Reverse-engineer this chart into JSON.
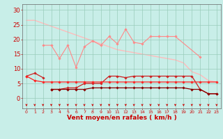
{
  "x": [
    0,
    1,
    2,
    3,
    4,
    5,
    6,
    7,
    8,
    9,
    10,
    11,
    12,
    13,
    14,
    15,
    16,
    17,
    18,
    19,
    20,
    21,
    22,
    23
  ],
  "lines": [
    {
      "y": [
        26.5,
        26.5,
        25.5,
        24.5,
        23.5,
        22.5,
        21.5,
        20.5,
        19.5,
        18.5,
        17.5,
        16.5,
        16.0,
        15.5,
        15.0,
        14.5,
        14.0,
        13.5,
        13.0,
        12.0,
        9.0,
        8.0,
        6.0,
        5.5
      ],
      "color": "#ffbbbb",
      "linewidth": 1.0,
      "marker": null,
      "markersize": 0,
      "zorder": 1
    },
    {
      "y": [
        null,
        null,
        18.0,
        18.0,
        13.5,
        18.0,
        10.5,
        17.5,
        19.5,
        18.0,
        21.0,
        18.5,
        23.5,
        19.0,
        18.5,
        21.0,
        21.0,
        21.0,
        21.0,
        null,
        null,
        14.0,
        null,
        null
      ],
      "color": "#ff8888",
      "linewidth": 0.8,
      "marker": "D",
      "markersize": 1.8,
      "zorder": 3
    },
    {
      "y": [
        7.5,
        8.5,
        7.0,
        null,
        null,
        null,
        null,
        null,
        null,
        null,
        null,
        null,
        null,
        null,
        null,
        null,
        null,
        null,
        null,
        null,
        null,
        null,
        null,
        null
      ],
      "color": "#cc2222",
      "linewidth": 0.9,
      "marker": "D",
      "markersize": 1.8,
      "zorder": 4
    },
    {
      "y": [
        null,
        null,
        null,
        3.0,
        3.0,
        3.5,
        3.5,
        5.0,
        5.0,
        5.0,
        7.5,
        7.5,
        7.0,
        7.5,
        7.5,
        7.5,
        7.5,
        7.5,
        7.5,
        7.5,
        7.5,
        3.0,
        1.5,
        1.5
      ],
      "color": "#cc2222",
      "linewidth": 0.9,
      "marker": "D",
      "markersize": 1.8,
      "zorder": 4
    },
    {
      "y": [
        7.5,
        6.0,
        5.5,
        5.5,
        5.5,
        5.5,
        5.5,
        5.5,
        5.5,
        5.5,
        5.5,
        5.5,
        5.5,
        5.5,
        5.5,
        5.5,
        5.5,
        5.5,
        5.5,
        5.5,
        5.5,
        5.5,
        5.5,
        5.5
      ],
      "color": "#ff2222",
      "linewidth": 0.9,
      "marker": "D",
      "markersize": 1.8,
      "zorder": 4
    },
    {
      "y": [
        null,
        null,
        null,
        3.0,
        3.0,
        3.0,
        3.0,
        3.0,
        3.5,
        3.5,
        3.5,
        3.5,
        3.5,
        3.5,
        3.5,
        3.5,
        3.5,
        3.5,
        3.5,
        3.5,
        3.0,
        3.0,
        1.5,
        1.5
      ],
      "color": "#880000",
      "linewidth": 0.9,
      "marker": "D",
      "markersize": 1.8,
      "zorder": 4
    }
  ],
  "xlabel": "Vent moyen/en rafales ( km/h )",
  "xlim": [
    -0.5,
    23.5
  ],
  "ylim": [
    -3.5,
    32
  ],
  "yticks": [
    0,
    5,
    10,
    15,
    20,
    25,
    30
  ],
  "xticks": [
    0,
    1,
    2,
    3,
    4,
    5,
    6,
    7,
    8,
    9,
    10,
    11,
    12,
    13,
    14,
    15,
    16,
    17,
    18,
    19,
    20,
    21,
    22,
    23
  ],
  "background_color": "#c8eee8",
  "grid_color": "#99ccbb",
  "arrow_color": "#cc0000",
  "xlabel_color": "#cc0000",
  "tick_color": "#cc0000",
  "xlabel_fontsize": 6.5,
  "ytick_fontsize": 6,
  "xtick_fontsize": 4.5
}
